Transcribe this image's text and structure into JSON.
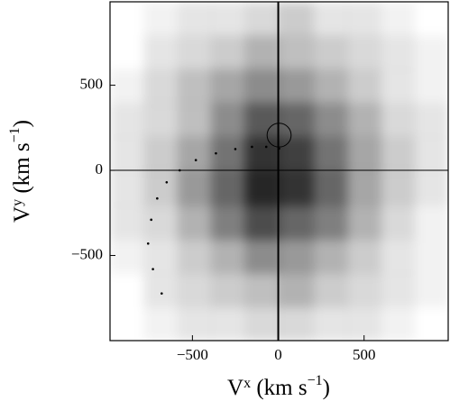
{
  "chart_data": {
    "type": "heatmap",
    "xlabel": [
      "V",
      "x",
      " (km s",
      "−1",
      ")"
    ],
    "ylabel": [
      "V",
      "y",
      " (km s",
      "−1",
      ")"
    ],
    "xlim": [
      -980,
      990
    ],
    "ylim": [
      -1000,
      990
    ],
    "xticks": [
      {
        "value": -500,
        "label": "−500"
      },
      0,
      500
    ],
    "yticks": [
      {
        "value": -500,
        "label": "−500"
      },
      0,
      500
    ],
    "color": "#000000",
    "z": [
      [
        0,
        0.05,
        0.1,
        0.1,
        0.15,
        0.2,
        0.1,
        0.1,
        0.05,
        0
      ],
      [
        0,
        0.1,
        0.15,
        0.2,
        0.3,
        0.25,
        0.2,
        0.15,
        0.1,
        0.05
      ],
      [
        0.05,
        0.15,
        0.25,
        0.35,
        0.45,
        0.4,
        0.3,
        0.2,
        0.1,
        0.05
      ],
      [
        0.1,
        0.15,
        0.25,
        0.45,
        0.65,
        0.6,
        0.45,
        0.3,
        0.15,
        0.1
      ],
      [
        0.1,
        0.2,
        0.35,
        0.55,
        0.8,
        0.75,
        0.55,
        0.35,
        0.2,
        0.1
      ],
      [
        0.1,
        0.2,
        0.4,
        0.6,
        0.85,
        0.8,
        0.6,
        0.35,
        0.2,
        0.1
      ],
      [
        0.1,
        0.15,
        0.3,
        0.5,
        0.7,
        0.6,
        0.5,
        0.3,
        0.15,
        0.05
      ],
      [
        0.05,
        0.1,
        0.2,
        0.3,
        0.45,
        0.4,
        0.3,
        0.2,
        0.1,
        0.05
      ],
      [
        0,
        0.1,
        0.15,
        0.2,
        0.25,
        0.3,
        0.2,
        0.15,
        0.1,
        0.05
      ],
      [
        0,
        0.05,
        0.1,
        0.1,
        0.15,
        0.15,
        0.1,
        0.1,
        0.05,
        0
      ]
    ],
    "trajectory": {
      "x": [
        -679,
        -730,
        -758,
        -740,
        -705,
        -650,
        -574,
        -480,
        -363,
        -250,
        -153,
        -70,
        5
      ],
      "y": [
        -723,
        -580,
        -430,
        -290,
        -165,
        -70,
        0,
        60,
        100,
        125,
        138,
        138,
        128
      ]
    },
    "circle": {
      "x": 5,
      "y": 207,
      "r": 70
    }
  }
}
